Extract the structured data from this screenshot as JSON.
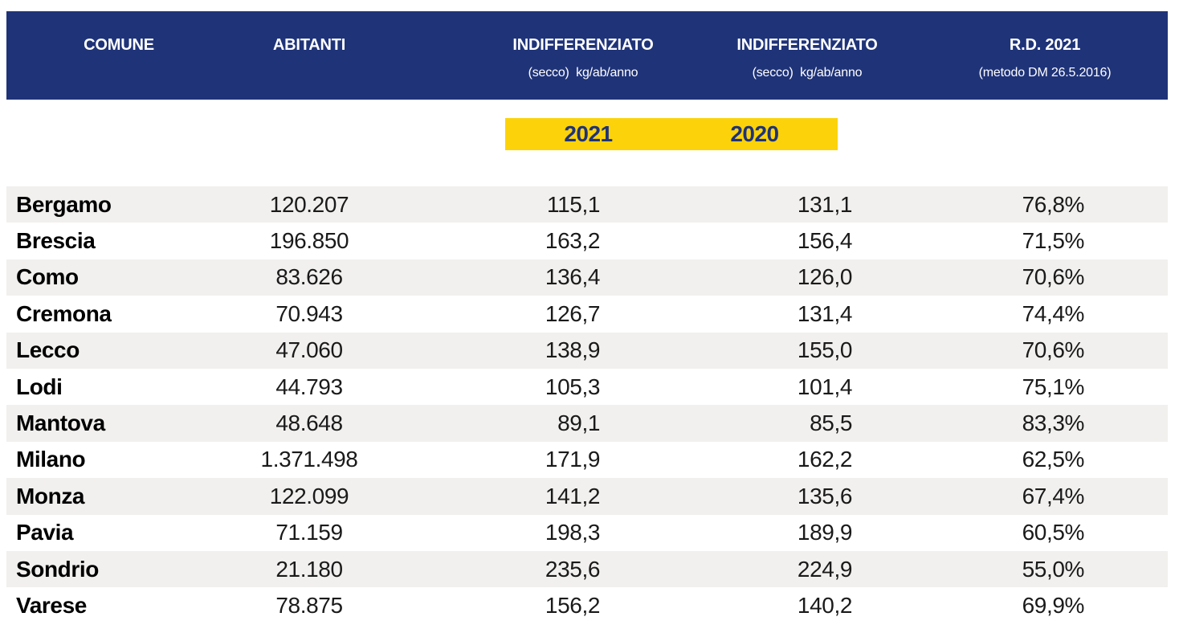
{
  "colors": {
    "navy": "#1F3378",
    "yellow": "#FCD30A",
    "row_alt": "#F1F0EE",
    "header_text": "#FFFFFF"
  },
  "table": {
    "header": {
      "comune": {
        "label": "COMUNE"
      },
      "abitanti": {
        "label": "ABITANTI"
      },
      "ind_2021": {
        "label": "INDIFFERENZIATO",
        "sublabel": "(secco)  kg/ab/anno"
      },
      "ind_2020": {
        "label": "INDIFFERENZIATO",
        "sublabel": "(secco)  kg/ab/anno"
      },
      "rd": {
        "label": "R.D. 2021",
        "sublabel": "(metodo DM 26.5.2016)"
      }
    },
    "year_band": [
      "2021",
      "2020"
    ],
    "rows": [
      {
        "comune": "Bergamo",
        "abitanti": "120.207",
        "ind_2021": "115,1",
        "ind_2020": "131,1",
        "rd": "76,8%"
      },
      {
        "comune": "Brescia",
        "abitanti": "196.850",
        "ind_2021": "163,2",
        "ind_2020": "156,4",
        "rd": "71,5%"
      },
      {
        "comune": "Como",
        "abitanti": "83.626",
        "ind_2021": "136,4",
        "ind_2020": "126,0",
        "rd": "70,6%"
      },
      {
        "comune": "Cremona",
        "abitanti": "70.943",
        "ind_2021": "126,7",
        "ind_2020": "131,4",
        "rd": "74,4%"
      },
      {
        "comune": "Lecco",
        "abitanti": "47.060",
        "ind_2021": "138,9",
        "ind_2020": "155,0",
        "rd": "70,6%"
      },
      {
        "comune": "Lodi",
        "abitanti": "44.793",
        "ind_2021": "105,3",
        "ind_2020": "101,4",
        "rd": "75,1%"
      },
      {
        "comune": "Mantova",
        "abitanti": "48.648",
        "ind_2021": "89,1",
        "ind_2020": "85,5",
        "rd": "83,3%"
      },
      {
        "comune": "Milano",
        "abitanti": "1.371.498",
        "ind_2021": "171,9",
        "ind_2020": "162,2",
        "rd": "62,5%"
      },
      {
        "comune": "Monza",
        "abitanti": "122.099",
        "ind_2021": "141,2",
        "ind_2020": "135,6",
        "rd": "67,4%"
      },
      {
        "comune": "Pavia",
        "abitanti": "71.159",
        "ind_2021": "198,3",
        "ind_2020": "189,9",
        "rd": "60,5%"
      },
      {
        "comune": "Sondrio",
        "abitanti": "21.180",
        "ind_2021": "235,6",
        "ind_2020": "224,9",
        "rd": "55,0%"
      },
      {
        "comune": "Varese",
        "abitanti": "78.875",
        "ind_2021": "156,2",
        "ind_2020": "140,2",
        "rd": "69,9%"
      }
    ]
  }
}
